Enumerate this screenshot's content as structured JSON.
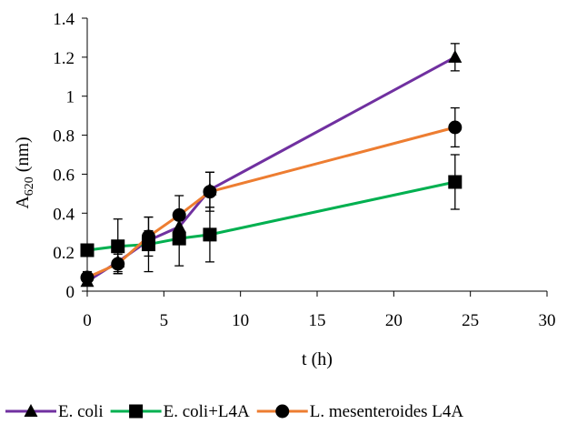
{
  "chart_data": {
    "type": "line",
    "xlabel": "t (h)",
    "ylabel_main": "A",
    "ylabel_sub": "620",
    "ylabel_tail": " (nm)",
    "xlim": [
      0,
      30
    ],
    "ylim": [
      0,
      1.4
    ],
    "x_ticks": [
      0,
      5,
      10,
      15,
      20,
      25,
      30
    ],
    "y_ticks": [
      0,
      0.2,
      0.4,
      0.6,
      0.8,
      1,
      1.2,
      1.4
    ],
    "x_tick_labels": [
      "0",
      "5",
      "10",
      "15",
      "20",
      "25",
      "30"
    ],
    "y_tick_labels": [
      "0",
      "0.2",
      "0.4",
      "0.6",
      "0.8",
      "1",
      "1.2",
      "1.4"
    ],
    "grid": false,
    "legend_position": "bottom",
    "series": [
      {
        "name": "E. coli",
        "color": "#7030A0",
        "marker": "triangle",
        "x": [
          0,
          2,
          4,
          6,
          8,
          24
        ],
        "y": [
          0.05,
          0.15,
          0.26,
          0.33,
          0.52,
          1.2
        ],
        "err": [
          0.02,
          0.05,
          0.05,
          0.05,
          0.09,
          0.07
        ]
      },
      {
        "name": "E. coli+L4A",
        "color": "#00B050",
        "marker": "square",
        "x": [
          0,
          2,
          4,
          6,
          8,
          24
        ],
        "y": [
          0.21,
          0.23,
          0.24,
          0.27,
          0.29,
          0.56
        ],
        "err": [
          0.0,
          0.14,
          0.14,
          0.14,
          0.14,
          0.14
        ]
      },
      {
        "name": "L. mesenteroides L4A",
        "color": "#ED7D31",
        "marker": "circle",
        "x": [
          0,
          2,
          4,
          6,
          8,
          24
        ],
        "y": [
          0.07,
          0.14,
          0.28,
          0.39,
          0.51,
          0.84
        ],
        "err": [
          0.03,
          0.05,
          0.1,
          0.1,
          0.1,
          0.1
        ]
      }
    ]
  }
}
